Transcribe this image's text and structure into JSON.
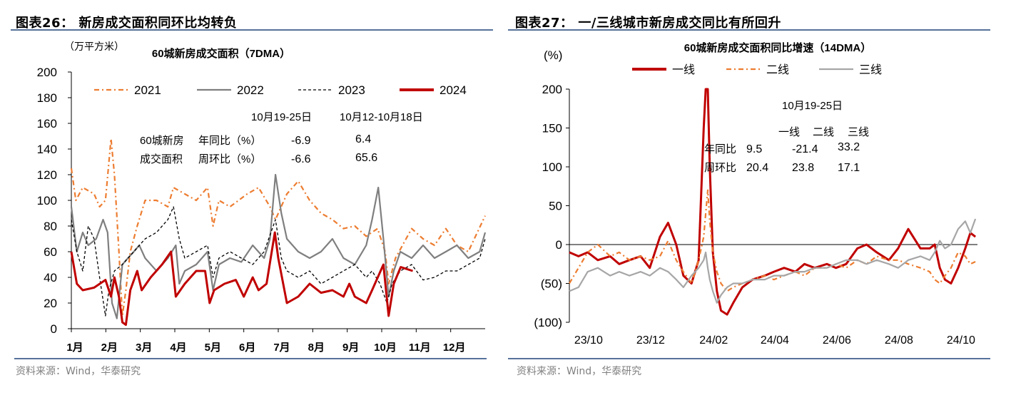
{
  "left": {
    "figure_title": "图表26：  新房成交面积同环比均转负",
    "source": "资料来源：Wind，华泰研究",
    "annotation": {
      "col_headers": [
        "10月19-25日",
        "10月12-10月18日"
      ],
      "row_label_prefix": [
        "60城新房",
        "成交面积"
      ],
      "rows": [
        {
          "label": "年同比（%）",
          "values": [
            "-6.9",
            "6.4"
          ]
        },
        {
          "label": "周环比（%）",
          "values": [
            "-6.6",
            "65.6"
          ]
        }
      ]
    }
  },
  "right": {
    "figure_title": "图表27：  一/三线城市新房成交同比有所回升",
    "source": "资料来源：Wind，华泰研究",
    "annotation": {
      "date": "10月19-25日",
      "col_headers": [
        "一线",
        "二线",
        "三线"
      ],
      "rows": [
        {
          "label": "年同比",
          "values": [
            "9.5",
            "-21.4",
            "33.2"
          ]
        },
        {
          "label": "周环比",
          "values": [
            "20.4",
            "23.8",
            "17.1"
          ]
        }
      ]
    }
  },
  "chart_data": [
    {
      "type": "line",
      "title": "60城新房成交面积（7DMA）",
      "ylabel": "（万平方米）",
      "xlabel": "",
      "x_unit": "month",
      "xlim": [
        1,
        13
      ],
      "ylim": [
        0,
        200
      ],
      "yticks": [
        0,
        20,
        40,
        60,
        80,
        100,
        120,
        140,
        160,
        180,
        200
      ],
      "xtick_labels": [
        "1月",
        "2月",
        "3月",
        "4月",
        "5月",
        "6月",
        "7月",
        "8月",
        "9月",
        "10月",
        "11月",
        "12月"
      ],
      "grid": false,
      "legend": "top",
      "series": [
        {
          "name": "2021",
          "color": "#ed7d31",
          "style": "dashdot",
          "points": [
            [
              1,
              125
            ],
            [
              1.13,
              100
            ],
            [
              1.33,
              110
            ],
            [
              1.66,
              105
            ],
            [
              1.82,
              95
            ],
            [
              1.99,
              100
            ],
            [
              2.15,
              148
            ],
            [
              2.25,
              120
            ],
            [
              2.38,
              60
            ],
            [
              2.48,
              10
            ],
            [
              2.58,
              30
            ],
            [
              2.71,
              60
            ],
            [
              2.91,
              80
            ],
            [
              3.14,
              100
            ],
            [
              3.47,
              100
            ],
            [
              3.8,
              95
            ],
            [
              3.96,
              110
            ],
            [
              4.29,
              105
            ],
            [
              4.62,
              100
            ],
            [
              4.95,
              110
            ],
            [
              5.11,
              80
            ],
            [
              5.28,
              100
            ],
            [
              5.6,
              95
            ],
            [
              6.1,
              105
            ],
            [
              6.43,
              110
            ],
            [
              6.76,
              95
            ],
            [
              6.92,
              85
            ],
            [
              7.25,
              105
            ],
            [
              7.58,
              115
            ],
            [
              7.91,
              100
            ],
            [
              8.24,
              90
            ],
            [
              8.57,
              85
            ],
            [
              8.89,
              78
            ],
            [
              9.22,
              80
            ],
            [
              9.55,
              72
            ],
            [
              9.88,
              78
            ],
            [
              10.1,
              60
            ],
            [
              10.2,
              35
            ],
            [
              10.4,
              55
            ],
            [
              10.87,
              78
            ],
            [
              11.2,
              70
            ],
            [
              11.53,
              65
            ],
            [
              11.86,
              78
            ],
            [
              12.18,
              65
            ],
            [
              12.51,
              60
            ],
            [
              13,
              88
            ]
          ]
        },
        {
          "name": "2022",
          "color": "#7f7f7f",
          "style": "solid",
          "points": [
            [
              1,
              95
            ],
            [
              1.16,
              60
            ],
            [
              1.33,
              75
            ],
            [
              1.49,
              65
            ],
            [
              1.72,
              70
            ],
            [
              1.92,
              85
            ],
            [
              2.05,
              75
            ],
            [
              2.18,
              20
            ],
            [
              2.32,
              8
            ],
            [
              2.48,
              50
            ],
            [
              2.64,
              55
            ],
            [
              2.81,
              60
            ],
            [
              2.97,
              65
            ],
            [
              3.14,
              55
            ],
            [
              3.47,
              45
            ],
            [
              3.8,
              55
            ],
            [
              4.03,
              65
            ],
            [
              4.13,
              35
            ],
            [
              4.29,
              45
            ],
            [
              4.62,
              50
            ],
            [
              4.95,
              60
            ],
            [
              5.11,
              30
            ],
            [
              5.28,
              50
            ],
            [
              5.6,
              55
            ],
            [
              5.93,
              52
            ],
            [
              6.26,
              65
            ],
            [
              6.59,
              55
            ],
            [
              6.76,
              70
            ],
            [
              6.92,
              120
            ],
            [
              7.09,
              90
            ],
            [
              7.25,
              70
            ],
            [
              7.58,
              60
            ],
            [
              7.91,
              55
            ],
            [
              8.24,
              60
            ],
            [
              8.57,
              70
            ],
            [
              8.89,
              55
            ],
            [
              9.22,
              50
            ],
            [
              9.55,
              65
            ],
            [
              9.72,
              85
            ],
            [
              9.9,
              110
            ],
            [
              10.05,
              70
            ],
            [
              10.2,
              25
            ],
            [
              10.35,
              45
            ],
            [
              10.54,
              60
            ],
            [
              10.87,
              55
            ],
            [
              11.2,
              65
            ],
            [
              11.53,
              55
            ],
            [
              11.86,
              60
            ],
            [
              12.18,
              65
            ],
            [
              12.51,
              55
            ],
            [
              12.84,
              60
            ],
            [
              13,
              75
            ]
          ]
        },
        {
          "name": "2023",
          "color": "#000000",
          "style": "dashed",
          "points": [
            [
              1,
              85
            ],
            [
              1.16,
              60
            ],
            [
              1.33,
              45
            ],
            [
              1.49,
              80
            ],
            [
              1.66,
              70
            ],
            [
              1.82,
              40
            ],
            [
              1.99,
              10
            ],
            [
              2.09,
              30
            ],
            [
              2.25,
              45
            ],
            [
              2.48,
              50
            ],
            [
              2.81,
              60
            ],
            [
              3.14,
              70
            ],
            [
              3.47,
              75
            ],
            [
              3.8,
              85
            ],
            [
              3.96,
              95
            ],
            [
              4.13,
              70
            ],
            [
              4.29,
              55
            ],
            [
              4.62,
              60
            ],
            [
              4.95,
              65
            ],
            [
              5.11,
              40
            ],
            [
              5.28,
              55
            ],
            [
              5.6,
              60
            ],
            [
              5.93,
              55
            ],
            [
              6.26,
              50
            ],
            [
              6.59,
              60
            ],
            [
              6.92,
              85
            ],
            [
              7.09,
              55
            ],
            [
              7.25,
              45
            ],
            [
              7.58,
              40
            ],
            [
              7.91,
              45
            ],
            [
              8.24,
              35
            ],
            [
              8.57,
              40
            ],
            [
              8.89,
              45
            ],
            [
              9.22,
              50
            ],
            [
              9.55,
              40
            ],
            [
              9.72,
              45
            ],
            [
              9.95,
              35
            ],
            [
              10.15,
              20
            ],
            [
              10.3,
              35
            ],
            [
              10.54,
              45
            ],
            [
              10.87,
              50
            ],
            [
              11.2,
              38
            ],
            [
              11.53,
              40
            ],
            [
              11.86,
              45
            ],
            [
              12.18,
              45
            ],
            [
              12.51,
              50
            ],
            [
              12.84,
              55
            ],
            [
              13,
              70
            ]
          ]
        },
        {
          "name": "2024",
          "color": "#c00000",
          "style": "solid-thick",
          "points": [
            [
              1,
              60
            ],
            [
              1.16,
              35
            ],
            [
              1.33,
              30
            ],
            [
              1.66,
              32
            ],
            [
              1.99,
              38
            ],
            [
              2.15,
              25
            ],
            [
              2.25,
              40
            ],
            [
              2.38,
              25
            ],
            [
              2.48,
              5
            ],
            [
              2.58,
              3
            ],
            [
              2.71,
              30
            ],
            [
              2.91,
              45
            ],
            [
              3.04,
              30
            ],
            [
              3.3,
              40
            ],
            [
              3.63,
              50
            ],
            [
              3.89,
              60
            ],
            [
              4.03,
              25
            ],
            [
              4.29,
              35
            ],
            [
              4.62,
              45
            ],
            [
              4.88,
              45
            ],
            [
              5.01,
              20
            ],
            [
              5.14,
              30
            ],
            [
              5.44,
              35
            ],
            [
              5.77,
              38
            ],
            [
              6.0,
              25
            ],
            [
              6.26,
              40
            ],
            [
              6.43,
              30
            ],
            [
              6.66,
              35
            ],
            [
              6.9,
              75
            ],
            [
              7.0,
              55
            ],
            [
              7.25,
              20
            ],
            [
              7.58,
              25
            ],
            [
              7.91,
              35
            ],
            [
              8.24,
              28
            ],
            [
              8.57,
              30
            ],
            [
              8.89,
              25
            ],
            [
              9.06,
              35
            ],
            [
              9.22,
              25
            ],
            [
              9.55,
              20
            ],
            [
              9.72,
              30
            ],
            [
              10.05,
              50
            ],
            [
              10.2,
              10
            ],
            [
              10.35,
              35
            ],
            [
              10.55,
              48
            ],
            [
              10.9,
              45
            ]
          ]
        }
      ]
    },
    {
      "type": "line",
      "title": "60城新房成交面积同比增速（14DMA）",
      "ylabel": "(%)",
      "xlabel": "",
      "xlim": [
        "2023-09-22",
        "2024-10-27"
      ],
      "ylim": [
        -100,
        200
      ],
      "yticks": [
        -100,
        -50,
        0,
        50,
        100,
        150,
        200
      ],
      "ytick_labels": [
        "(100)",
        "(50)",
        "0",
        "50",
        "100",
        "150",
        "200"
      ],
      "xticks": [
        "2023-10-01",
        "2023-12-01",
        "2024-02-01",
        "2024-04-01",
        "2024-06-01",
        "2024-08-01",
        "2024-10-01"
      ],
      "xtick_labels": [
        "23/10",
        "23/12",
        "24/02",
        "24/04",
        "24/06",
        "24/08",
        "24/10"
      ],
      "grid": false,
      "legend": "top",
      "x": [
        "2023-09-22",
        "2023-10-01",
        "2023-10-10",
        "2023-10-20",
        "2023-11-01",
        "2023-11-10",
        "2023-11-20",
        "2023-12-01",
        "2023-12-10",
        "2023-12-20",
        "2023-12-28",
        "2024-01-05",
        "2024-01-12",
        "2024-01-20",
        "2024-01-27",
        "2024-02-01",
        "2024-02-03",
        "2024-02-05",
        "2024-02-07",
        "2024-02-10",
        "2024-02-14",
        "2024-02-18",
        "2024-02-24",
        "2024-03-01",
        "2024-03-10",
        "2024-03-20",
        "2024-04-01",
        "2024-04-10",
        "2024-04-20",
        "2024-05-01",
        "2024-05-10",
        "2024-05-20",
        "2024-06-01",
        "2024-06-10",
        "2024-06-20",
        "2024-07-01",
        "2024-07-10",
        "2024-07-20",
        "2024-08-01",
        "2024-08-10",
        "2024-08-20",
        "2024-09-01",
        "2024-09-10",
        "2024-09-15",
        "2024-09-20",
        "2024-09-25",
        "2024-10-01",
        "2024-10-08",
        "2024-10-15",
        "2024-10-20",
        "2024-10-25"
      ],
      "series": [
        {
          "name": "一线",
          "color": "#c00000",
          "style": "solid-thick",
          "values": [
            -10,
            -15,
            -10,
            -20,
            -15,
            -25,
            -20,
            -15,
            -30,
            10,
            28,
            0,
            -40,
            -50,
            -20,
            150,
            200,
            200,
            100,
            -10,
            -60,
            -85,
            -90,
            -75,
            -55,
            -45,
            -40,
            -35,
            -30,
            -35,
            -25,
            -30,
            -25,
            -30,
            -25,
            -5,
            0,
            -10,
            -20,
            -5,
            20,
            -5,
            -5,
            0,
            -30,
            -45,
            -50,
            -30,
            -5,
            15,
            10
          ]
        },
        {
          "name": "二线",
          "color": "#ed7d31",
          "style": "dashdot",
          "values": [
            -50,
            -30,
            -10,
            0,
            -15,
            -10,
            -20,
            -15,
            -20,
            -15,
            5,
            -20,
            -35,
            -50,
            -20,
            10,
            40,
            70,
            30,
            -10,
            -35,
            -50,
            -60,
            -55,
            -50,
            -45,
            -40,
            -45,
            -40,
            -35,
            -40,
            -30,
            -30,
            -25,
            -30,
            -20,
            -25,
            -15,
            -20,
            -20,
            -25,
            -30,
            -35,
            -45,
            -50,
            -40,
            -30,
            -10,
            -15,
            -25,
            -22
          ]
        },
        {
          "name": "三线",
          "color": "#a6a6a6",
          "style": "solid",
          "values": [
            -60,
            -55,
            -35,
            -30,
            -40,
            -35,
            -40,
            -35,
            -40,
            -30,
            -35,
            -45,
            -55,
            -40,
            -30,
            -20,
            -10,
            -30,
            -45,
            -60,
            -75,
            -65,
            -55,
            -50,
            -50,
            -45,
            -45,
            -40,
            -40,
            -35,
            -35,
            -30,
            -30,
            -25,
            -20,
            -20,
            -25,
            -20,
            -25,
            -30,
            -20,
            -15,
            -20,
            -10,
            5,
            -5,
            0,
            20,
            30,
            15,
            33
          ]
        }
      ]
    }
  ]
}
